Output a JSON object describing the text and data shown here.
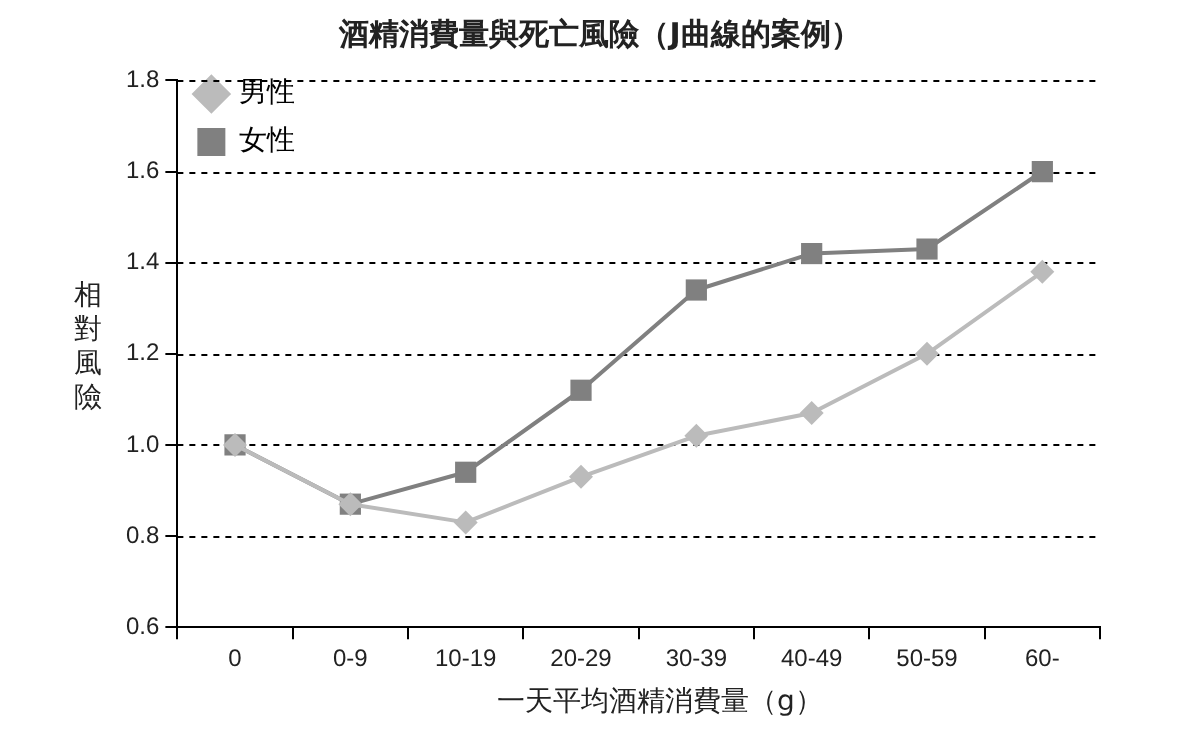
{
  "chart_data": {
    "type": "line",
    "title": "酒精消費量與死亡風險（J曲線的案例）",
    "xlabel": "一天平均酒精消費量（g）",
    "ylabel": "相對風險",
    "categories": [
      "0",
      "0-9",
      "10-19",
      "20-29",
      "30-39",
      "40-49",
      "50-59",
      "60-"
    ],
    "series": [
      {
        "name": "男性",
        "color": "#bbbbbb",
        "marker": "diamond",
        "values": [
          1.0,
          0.87,
          0.83,
          0.93,
          1.02,
          1.07,
          1.2,
          1.38
        ]
      },
      {
        "name": "女性",
        "color": "#808080",
        "marker": "square",
        "values": [
          1.0,
          0.87,
          0.94,
          1.12,
          1.34,
          1.42,
          1.43,
          1.6
        ]
      }
    ],
    "ylim": [
      0.6,
      1.8
    ],
    "yticks": [
      {
        "value": 0.6,
        "label": "0.6"
      },
      {
        "value": 0.8,
        "label": "0.8"
      },
      {
        "value": 1,
        "label": "1.0"
      },
      {
        "value": 1.2,
        "label": "1.2"
      },
      {
        "value": 1.4,
        "label": "1.4"
      },
      {
        "value": 1.6,
        "label": "1.6"
      },
      {
        "value": 1.8,
        "label": "1.8"
      }
    ],
    "grid": "y",
    "legend": "top left",
    "line_style": "solid"
  }
}
